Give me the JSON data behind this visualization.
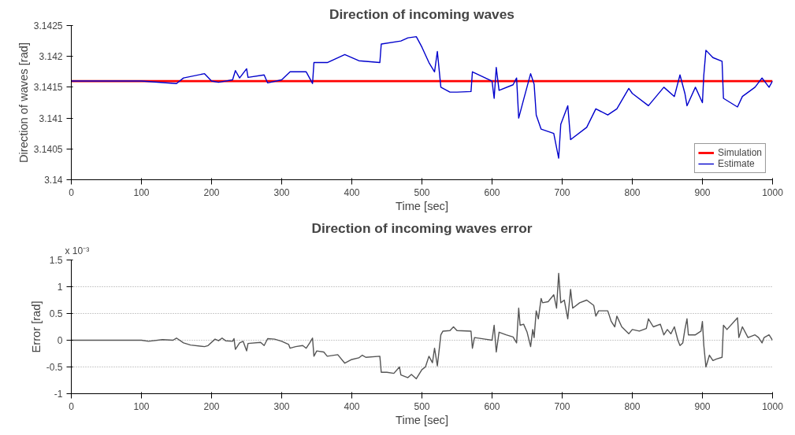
{
  "chart_data": [
    {
      "type": "line",
      "title": "Direction of incoming waves",
      "xlabel": "Time [sec]",
      "ylabel": "Direction of waves [rad]",
      "xlim": [
        0,
        1000
      ],
      "xticks": [
        0,
        100,
        200,
        300,
        400,
        500,
        600,
        700,
        800,
        900,
        1000
      ],
      "ylim": [
        3.14,
        3.1425
      ],
      "yticks": [
        3.14,
        3.1405,
        3.141,
        3.1415,
        3.142,
        3.1425
      ],
      "grid": false,
      "legend": "bottom right",
      "series": [
        {
          "name": "Simulation",
          "color": "#ff0000",
          "x": [
            0,
            1000
          ],
          "values": [
            3.1416,
            3.1416
          ]
        },
        {
          "name": "Estimate",
          "color": "#0000cc",
          "x": [
            0,
            100,
            150,
            160,
            190,
            200,
            210,
            230,
            234,
            240,
            250,
            252,
            275,
            280,
            300,
            312,
            335,
            344,
            346,
            365,
            390,
            410,
            440,
            442,
            470,
            480,
            492,
            500,
            510,
            518,
            522,
            527,
            540,
            550,
            570,
            572,
            600,
            603,
            606,
            610,
            630,
            635,
            638,
            645,
            655,
            660,
            663,
            670,
            688,
            695,
            698,
            708,
            712,
            735,
            748,
            765,
            778,
            795,
            800,
            823,
            845,
            860,
            868,
            875,
            878,
            890,
            900,
            902,
            905,
            915,
            928,
            930,
            950,
            957,
            975,
            985,
            995,
            1000
          ],
          "values": [
            3.1416,
            3.1416,
            3.14156,
            3.14165,
            3.14172,
            3.1416,
            3.14158,
            3.14162,
            3.14177,
            3.14165,
            3.1418,
            3.14166,
            3.1417,
            3.14157,
            3.14162,
            3.14175,
            3.14175,
            3.14156,
            3.1419,
            3.1419,
            3.14203,
            3.14193,
            3.1419,
            3.1422,
            3.14225,
            3.1423,
            3.14232,
            3.14215,
            3.1419,
            3.14175,
            3.14208,
            3.1415,
            3.14142,
            3.14142,
            3.14143,
            3.14175,
            3.1416,
            3.14132,
            3.14182,
            3.14145,
            3.14154,
            3.14165,
            3.141,
            3.1413,
            3.14172,
            3.14155,
            3.14105,
            3.14082,
            3.14075,
            3.14035,
            3.1409,
            3.1412,
            3.14065,
            3.14085,
            3.14115,
            3.14105,
            3.14115,
            3.14148,
            3.1414,
            3.1412,
            3.1415,
            3.14135,
            3.1417,
            3.1414,
            3.1412,
            3.1415,
            3.14125,
            3.1417,
            3.1421,
            3.14198,
            3.14192,
            3.14132,
            3.14118,
            3.14135,
            3.1415,
            3.14165,
            3.1415,
            3.1416
          ]
        }
      ]
    },
    {
      "type": "line",
      "title": "Direction of incoming waves error",
      "xlabel": "Time [sec]",
      "ylabel": "Error [rad]",
      "annotations": [
        "x 10⁻³"
      ],
      "xlim": [
        0,
        1000
      ],
      "xticks": [
        0,
        100,
        200,
        300,
        400,
        500,
        600,
        700,
        800,
        900,
        1000
      ],
      "ylim": [
        -1,
        1.5
      ],
      "yticks": [
        -1,
        -0.5,
        0,
        0.5,
        1,
        1.5
      ],
      "grid": "y",
      "legend": false,
      "series": [
        {
          "color": "#555555",
          "x": [
            0,
            100,
            110,
            130,
            145,
            150,
            160,
            170,
            190,
            195,
            205,
            210,
            215,
            220,
            230,
            232,
            234,
            240,
            245,
            250,
            252,
            270,
            275,
            280,
            290,
            300,
            310,
            312,
            320,
            330,
            335,
            340,
            344,
            346,
            350,
            360,
            365,
            380,
            390,
            400,
            410,
            415,
            420,
            440,
            442,
            450,
            460,
            468,
            470,
            480,
            485,
            492,
            500,
            505,
            510,
            515,
            518,
            522,
            527,
            530,
            540,
            545,
            550,
            570,
            572,
            575,
            590,
            600,
            603,
            606,
            610,
            620,
            630,
            635,
            638,
            640,
            645,
            650,
            655,
            658,
            660,
            663,
            666,
            670,
            672,
            680,
            688,
            692,
            695,
            698,
            703,
            708,
            712,
            715,
            725,
            735,
            745,
            748,
            752,
            765,
            770,
            775,
            778,
            785,
            795,
            800,
            810,
            820,
            823,
            830,
            840,
            845,
            850,
            855,
            860,
            865,
            868,
            872,
            875,
            878,
            880,
            890,
            898,
            900,
            902,
            905,
            910,
            915,
            920,
            928,
            930,
            935,
            950,
            952,
            957,
            965,
            975,
            980,
            985,
            988,
            995,
            1000
          ],
          "values": [
            0,
            0,
            -0.02,
            0.01,
            0,
            0.04,
            -0.05,
            -0.09,
            -0.12,
            -0.1,
            0.02,
            -0.01,
            0.04,
            -0.01,
            -0.02,
            0.03,
            -0.17,
            -0.05,
            -0.02,
            -0.2,
            -0.06,
            -0.04,
            -0.1,
            0.03,
            0.02,
            -0.02,
            -0.08,
            -0.15,
            -0.12,
            -0.1,
            -0.15,
            -0.05,
            0.04,
            -0.3,
            -0.2,
            -0.22,
            -0.3,
            -0.27,
            -0.43,
            -0.36,
            -0.33,
            -0.28,
            -0.32,
            -0.3,
            -0.6,
            -0.6,
            -0.62,
            -0.5,
            -0.65,
            -0.7,
            -0.64,
            -0.72,
            -0.55,
            -0.5,
            -0.3,
            -0.42,
            -0.15,
            -0.48,
            0.1,
            0.17,
            0.18,
            0.25,
            0.18,
            0.17,
            -0.15,
            0.05,
            0.02,
            0,
            0.28,
            -0.22,
            0.15,
            0.1,
            0.06,
            -0.05,
            0.6,
            0.28,
            0.3,
            0.15,
            -0.12,
            0.2,
            0.05,
            0.55,
            0.4,
            0.78,
            0.7,
            0.72,
            0.85,
            0.6,
            1.25,
            0.7,
            0.75,
            0.4,
            0.95,
            0.6,
            0.7,
            0.75,
            0.65,
            0.45,
            0.55,
            0.55,
            0.35,
            0.25,
            0.45,
            0.25,
            0.12,
            0.2,
            0.17,
            0.22,
            0.4,
            0.25,
            0.3,
            0.1,
            0.2,
            0.12,
            0.25,
            0,
            -0.1,
            -0.05,
            0.2,
            0.4,
            0.1,
            0.1,
            0.17,
            0.35,
            -0.1,
            -0.5,
            -0.28,
            -0.38,
            -0.35,
            -0.32,
            0.28,
            0.2,
            0.42,
            0.05,
            0.25,
            0.05,
            0.1,
            0.05,
            -0.05,
            0.05,
            0.1,
            0
          ]
        }
      ]
    }
  ]
}
